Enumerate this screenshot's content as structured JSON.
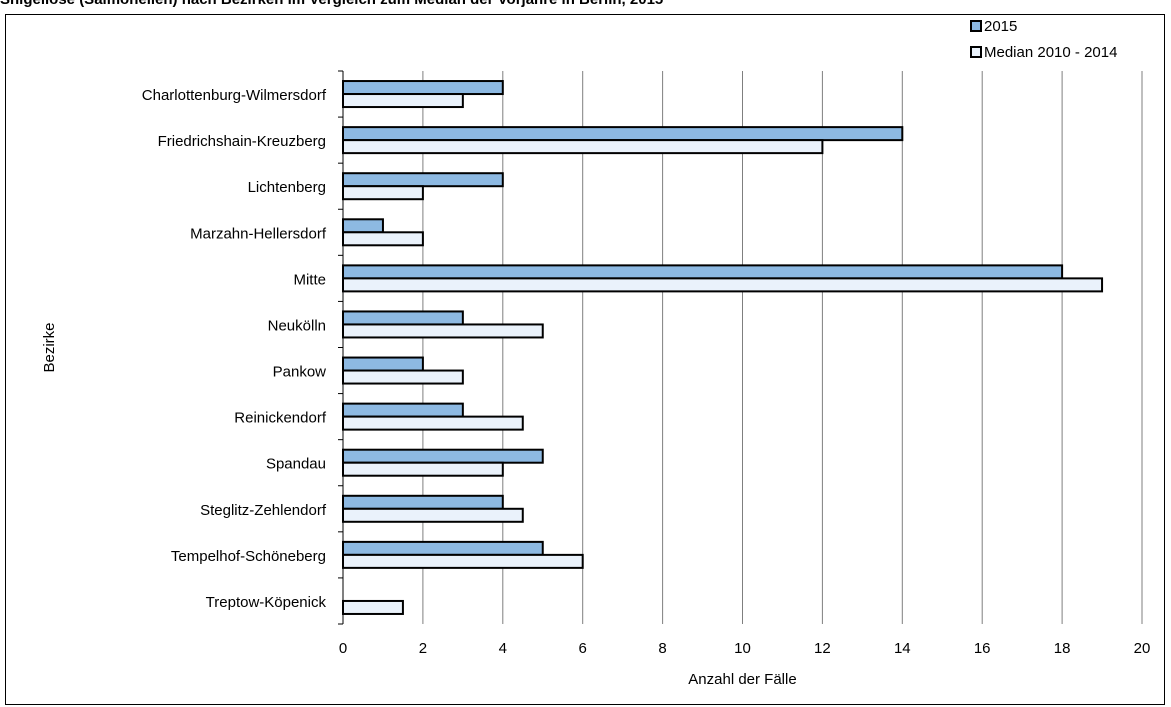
{
  "chart_data": {
    "type": "bar",
    "orientation": "horizontal",
    "title": "Shigellose (Salmonellen) nach Bezirken im Vergleich zum Median der Vorjahre in Berlin, 2015",
    "xlabel": "Anzahl der Fälle",
    "ylabel": "Bezirke",
    "xlim": [
      0,
      20
    ],
    "xticks": [
      0,
      2,
      4,
      6,
      8,
      10,
      12,
      14,
      16,
      18,
      20
    ],
    "grid": "vertical",
    "legend_position": "top-right",
    "categories": [
      "Charlottenburg-Wilmersdorf",
      "Friedrichshain-Kreuzberg",
      "Lichtenberg",
      "Marzahn-Hellersdorf",
      "Mitte",
      "Neukölln",
      "Pankow",
      "Reinickendorf",
      "Spandau",
      "Steglitz-Zehlendorf",
      "Tempelhof-Schöneberg",
      "Treptow-Köpenick"
    ],
    "series": [
      {
        "name": "2015",
        "color": "#8DB9E2",
        "values": [
          4,
          14,
          4,
          1,
          18,
          3,
          2,
          3,
          5,
          4,
          5,
          0
        ]
      },
      {
        "name": "Median 2010 - 2014",
        "color": "#EAF2FB",
        "values": [
          3,
          12,
          2,
          2,
          19,
          5,
          3,
          4.5,
          4,
          4.5,
          6,
          1.5
        ]
      }
    ]
  }
}
